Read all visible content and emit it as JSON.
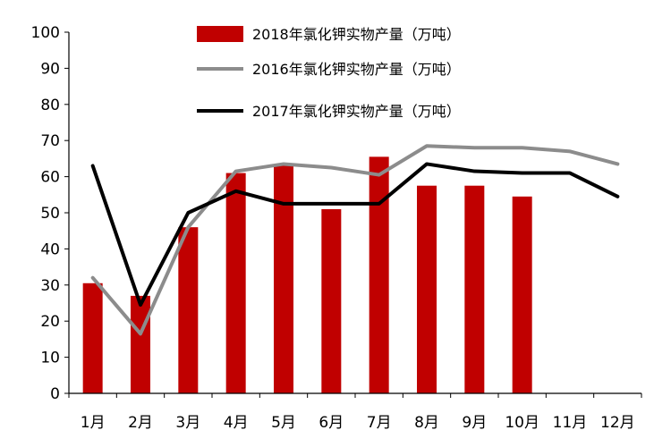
{
  "chart_data": {
    "type": "bar",
    "title": "",
    "xlabel": "",
    "ylabel": "",
    "categories": [
      "1月",
      "2月",
      "3月",
      "4月",
      "5月",
      "6月",
      "7月",
      "8月",
      "9月",
      "10月",
      "11月",
      "12月"
    ],
    "ylim": [
      0,
      100
    ],
    "yticks": [
      0,
      10,
      20,
      30,
      40,
      50,
      60,
      70,
      80,
      90,
      100
    ],
    "grid": false,
    "legend_position": "top-center",
    "series": [
      {
        "name": "2018年氯化钾实物产量（万吨）",
        "type": "bar",
        "color": "#c00000",
        "values": [
          30.5,
          27,
          46,
          61,
          63,
          51,
          65.5,
          57.5,
          57.5,
          54.5,
          null,
          null
        ]
      },
      {
        "name": "2016年氯化钾实物产量（万吨）",
        "type": "line",
        "color": "#8c8c8c",
        "values": [
          32,
          16.5,
          46,
          61.5,
          63.5,
          62.5,
          60.5,
          68.5,
          68,
          68,
          67,
          63.5
        ]
      },
      {
        "name": "2017年氯化钾实物产量（万吨）",
        "type": "line",
        "color": "#000000",
        "values": [
          63,
          24.5,
          50,
          56,
          52.5,
          52.5,
          52.5,
          63.5,
          61.5,
          61,
          61,
          54.5
        ]
      }
    ]
  }
}
